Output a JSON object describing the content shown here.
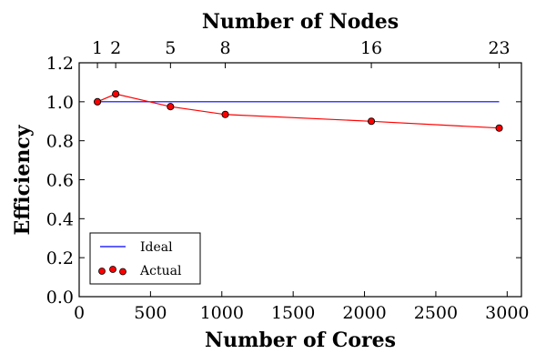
{
  "chart_data": {
    "type": "line",
    "xlabel": "Number of Cores",
    "x2label": "Number of Nodes",
    "ylabel": "Efficiency",
    "xlim": [
      0,
      3100
    ],
    "ylim": [
      0.0,
      1.2
    ],
    "x_ticks": [
      0,
      500,
      1000,
      1500,
      2000,
      2500,
      3000
    ],
    "y_ticks": [
      0.0,
      0.2,
      0.4,
      0.6,
      0.8,
      1.0,
      1.2
    ],
    "x_tick_labels": [
      "0",
      "500",
      "1000",
      "1500",
      "2000",
      "2500",
      "3000"
    ],
    "y_tick_labels": [
      "0.0",
      "0.2",
      "0.4",
      "0.6",
      "0.8",
      "1.0",
      "1.2"
    ],
    "top_ticks": [
      {
        "cores": 128,
        "label": "1"
      },
      {
        "cores": 256,
        "label": "2"
      },
      {
        "cores": 640,
        "label": "5"
      },
      {
        "cores": 1024,
        "label": "8"
      },
      {
        "cores": 2048,
        "label": "16"
      },
      {
        "cores": 2944,
        "label": "23"
      }
    ],
    "grid": false,
    "legend_position": "lower-left",
    "series": [
      {
        "name": "Ideal",
        "style": "line",
        "color": "#0000ff",
        "x": [
          128,
          2944
        ],
        "y": [
          1.0,
          1.0
        ]
      },
      {
        "name": "Actual",
        "style": "line-markers",
        "color": "#ff0000",
        "marker_color": "#ff0000",
        "marker_edge": "#000000",
        "x": [
          128,
          256,
          640,
          1024,
          2048,
          2944
        ],
        "y": [
          1.0,
          1.04,
          0.975,
          0.935,
          0.9,
          0.865
        ]
      }
    ]
  }
}
